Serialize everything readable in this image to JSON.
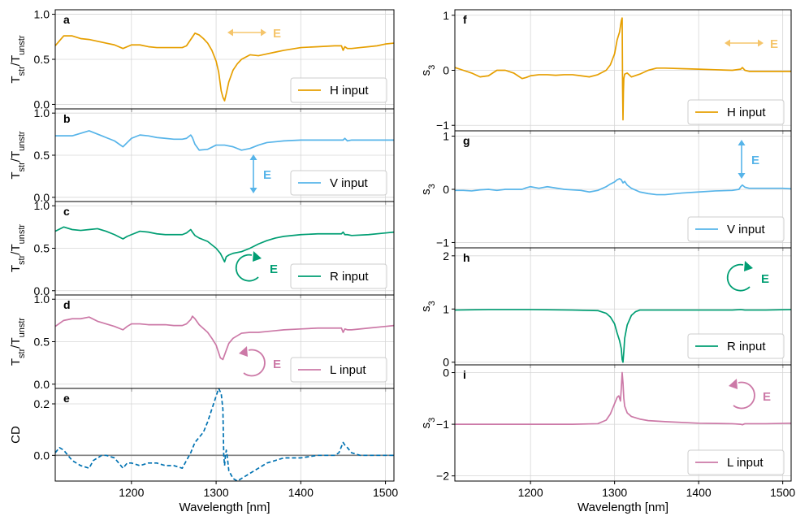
{
  "colors": {
    "H": "#E69F00",
    "V": "#56B4E9",
    "R": "#009E73",
    "L": "#CC79A7",
    "CD": "#0072B2",
    "H_arrow": "#F5C56B",
    "grid": "#d6d6d6",
    "zero": "#808080"
  },
  "icons": {
    "H": "double-arrow-horizontal-icon",
    "V": "double-arrow-vertical-icon",
    "R": "circular-arrow-clockwise-icon",
    "L": "circular-arrow-counterclockwise-icon"
  },
  "chart_data": [
    {
      "id": "a",
      "panel_label": "a",
      "type": "line",
      "ylabel": "T_str/T_unstr",
      "ylabel_main": "T",
      "ylabel_sub1": "str",
      "ylabel_mid": "/T",
      "ylabel_sub2": "unstr",
      "ylim": [
        -0.05,
        1.05
      ],
      "yticks": [
        0.0,
        0.5,
        1.0
      ],
      "ytick_labels": [
        "0.0",
        "0.5",
        "1.0"
      ],
      "xlim": [
        1110,
        1510
      ],
      "legend": "H input",
      "legend_placement": "bottom-right",
      "polarization_label": "E",
      "polarization": "H",
      "series_color": "H",
      "series": {
        "name": "H input",
        "x": [
          1110,
          1120,
          1130,
          1140,
          1150,
          1160,
          1170,
          1180,
          1190,
          1200,
          1210,
          1220,
          1230,
          1240,
          1250,
          1260,
          1265,
          1270,
          1275,
          1280,
          1285,
          1290,
          1295,
          1300,
          1303,
          1306,
          1308,
          1310,
          1312,
          1315,
          1320,
          1325,
          1330,
          1340,
          1350,
          1360,
          1370,
          1380,
          1400,
          1420,
          1440,
          1448,
          1450,
          1452,
          1455,
          1460,
          1470,
          1480,
          1490,
          1500,
          1510
        ],
        "y": [
          0.65,
          0.76,
          0.76,
          0.73,
          0.72,
          0.7,
          0.68,
          0.66,
          0.62,
          0.66,
          0.66,
          0.64,
          0.63,
          0.63,
          0.63,
          0.63,
          0.65,
          0.72,
          0.79,
          0.77,
          0.73,
          0.68,
          0.6,
          0.48,
          0.36,
          0.15,
          0.08,
          0.04,
          0.12,
          0.25,
          0.38,
          0.45,
          0.5,
          0.55,
          0.54,
          0.56,
          0.58,
          0.6,
          0.63,
          0.64,
          0.65,
          0.65,
          0.6,
          0.64,
          0.62,
          0.62,
          0.63,
          0.64,
          0.65,
          0.67,
          0.68
        ]
      }
    },
    {
      "id": "b",
      "panel_label": "b",
      "type": "line",
      "ylabel": "T_str/T_unstr",
      "ylabel_main": "T",
      "ylabel_sub1": "str",
      "ylabel_mid": "/T",
      "ylabel_sub2": "unstr",
      "ylim": [
        -0.05,
        1.05
      ],
      "yticks": [
        0.0,
        0.5,
        1.0
      ],
      "ytick_labels": [
        "0.0",
        "0.5",
        "1.0"
      ],
      "xlim": [
        1110,
        1510
      ],
      "legend": "V input",
      "legend_placement": "bottom-right",
      "polarization_label": "E",
      "polarization": "V",
      "series_color": "V",
      "series": {
        "name": "V input",
        "x": [
          1110,
          1120,
          1130,
          1140,
          1150,
          1160,
          1170,
          1180,
          1190,
          1195,
          1200,
          1210,
          1220,
          1230,
          1240,
          1250,
          1260,
          1265,
          1270,
          1272,
          1275,
          1280,
          1290,
          1300,
          1310,
          1320,
          1330,
          1340,
          1350,
          1360,
          1370,
          1380,
          1400,
          1420,
          1440,
          1450,
          1452,
          1455,
          1460,
          1480,
          1500,
          1510
        ],
        "y": [
          0.73,
          0.73,
          0.73,
          0.76,
          0.79,
          0.75,
          0.71,
          0.67,
          0.6,
          0.65,
          0.7,
          0.74,
          0.73,
          0.71,
          0.7,
          0.69,
          0.69,
          0.7,
          0.74,
          0.71,
          0.63,
          0.56,
          0.57,
          0.62,
          0.62,
          0.6,
          0.56,
          0.58,
          0.62,
          0.65,
          0.66,
          0.67,
          0.68,
          0.68,
          0.68,
          0.68,
          0.7,
          0.67,
          0.68,
          0.68,
          0.68,
          0.68
        ]
      }
    },
    {
      "id": "c",
      "panel_label": "c",
      "type": "line",
      "ylabel": "T_str/T_unstr",
      "ylabel_main": "T",
      "ylabel_sub1": "str",
      "ylabel_mid": "/T",
      "ylabel_sub2": "unstr",
      "ylim": [
        -0.05,
        1.05
      ],
      "yticks": [
        0.0,
        0.5,
        1.0
      ],
      "ytick_labels": [
        "0.0",
        "0.5",
        "1.0"
      ],
      "xlim": [
        1110,
        1510
      ],
      "legend": "R input",
      "legend_placement": "bottom-right",
      "polarization_label": "E",
      "polarization": "R",
      "series_color": "R",
      "series": {
        "name": "R input",
        "x": [
          1110,
          1120,
          1130,
          1140,
          1150,
          1160,
          1170,
          1180,
          1190,
          1195,
          1200,
          1210,
          1220,
          1230,
          1240,
          1250,
          1260,
          1265,
          1270,
          1272,
          1275,
          1280,
          1290,
          1300,
          1305,
          1308,
          1310,
          1312,
          1315,
          1320,
          1330,
          1340,
          1350,
          1360,
          1370,
          1380,
          1400,
          1420,
          1440,
          1448,
          1450,
          1452,
          1455,
          1460,
          1480,
          1500,
          1510
        ],
        "y": [
          0.7,
          0.75,
          0.72,
          0.71,
          0.72,
          0.73,
          0.7,
          0.66,
          0.61,
          0.64,
          0.66,
          0.7,
          0.69,
          0.67,
          0.66,
          0.66,
          0.66,
          0.68,
          0.72,
          0.69,
          0.65,
          0.62,
          0.58,
          0.5,
          0.44,
          0.38,
          0.34,
          0.4,
          0.42,
          0.44,
          0.46,
          0.5,
          0.55,
          0.59,
          0.62,
          0.64,
          0.66,
          0.67,
          0.67,
          0.67,
          0.69,
          0.66,
          0.66,
          0.65,
          0.66,
          0.68,
          0.69
        ]
      }
    },
    {
      "id": "d",
      "panel_label": "d",
      "type": "line",
      "ylabel": "T_str/T_unstr",
      "ylabel_main": "T",
      "ylabel_sub1": "str",
      "ylabel_mid": "/T",
      "ylabel_sub2": "unstr",
      "ylim": [
        -0.05,
        1.05
      ],
      "yticks": [
        0.0,
        0.5,
        1.0
      ],
      "ytick_labels": [
        "0.0",
        "0.5",
        "1.0"
      ],
      "xlim": [
        1110,
        1510
      ],
      "legend": "L input",
      "legend_placement": "bottom-right",
      "polarization_label": "E",
      "polarization": "L",
      "series_color": "L",
      "series": {
        "name": "L input",
        "x": [
          1110,
          1120,
          1130,
          1140,
          1150,
          1160,
          1170,
          1180,
          1190,
          1195,
          1200,
          1210,
          1220,
          1230,
          1240,
          1250,
          1260,
          1265,
          1270,
          1272,
          1275,
          1280,
          1290,
          1295,
          1300,
          1305,
          1308,
          1312,
          1315,
          1320,
          1330,
          1340,
          1350,
          1360,
          1370,
          1380,
          1400,
          1420,
          1440,
          1448,
          1450,
          1452,
          1455,
          1460,
          1480,
          1500,
          1510
        ],
        "y": [
          0.68,
          0.75,
          0.77,
          0.77,
          0.79,
          0.74,
          0.71,
          0.68,
          0.64,
          0.68,
          0.71,
          0.71,
          0.7,
          0.7,
          0.7,
          0.69,
          0.69,
          0.71,
          0.76,
          0.8,
          0.77,
          0.7,
          0.61,
          0.54,
          0.46,
          0.31,
          0.29,
          0.4,
          0.48,
          0.54,
          0.6,
          0.61,
          0.61,
          0.62,
          0.63,
          0.64,
          0.65,
          0.66,
          0.66,
          0.66,
          0.61,
          0.65,
          0.64,
          0.64,
          0.66,
          0.68,
          0.69
        ]
      }
    },
    {
      "id": "e",
      "panel_label": "e",
      "type": "line",
      "ylabel": "CD",
      "ylim": [
        -0.1,
        0.26
      ],
      "yticks": [
        0.0,
        0.2
      ],
      "ytick_labels": [
        "0.0",
        "0.2"
      ],
      "xlim": [
        1110,
        1510
      ],
      "xticks": [
        1200,
        1300,
        1400,
        1500
      ],
      "xtick_labels": [
        "1200",
        "1300",
        "1400",
        "1500"
      ],
      "xlabel": "Wavelength [nm]",
      "series_color": "CD",
      "dashed": true,
      "series": {
        "name": "CD",
        "x": [
          1110,
          1115,
          1120,
          1130,
          1140,
          1150,
          1155,
          1160,
          1165,
          1170,
          1180,
          1190,
          1195,
          1200,
          1210,
          1220,
          1230,
          1240,
          1250,
          1260,
          1265,
          1270,
          1275,
          1280,
          1285,
          1290,
          1295,
          1300,
          1303,
          1306,
          1308,
          1309,
          1310,
          1311,
          1312,
          1313,
          1315,
          1320,
          1325,
          1330,
          1340,
          1350,
          1360,
          1370,
          1380,
          1400,
          1420,
          1440,
          1445,
          1450,
          1452,
          1455,
          1460,
          1470,
          1480,
          1500,
          1510
        ],
        "y": [
          0.01,
          0.03,
          0.02,
          -0.02,
          -0.04,
          -0.05,
          -0.02,
          -0.01,
          0.0,
          0.0,
          -0.01,
          -0.05,
          -0.03,
          -0.03,
          -0.04,
          -0.03,
          -0.03,
          -0.04,
          -0.04,
          -0.05,
          -0.02,
          0.01,
          0.05,
          0.07,
          0.09,
          0.13,
          0.18,
          0.23,
          0.26,
          0.24,
          0.18,
          0.0,
          -0.04,
          0.0,
          0.02,
          0.0,
          -0.06,
          -0.09,
          -0.1,
          -0.09,
          -0.07,
          -0.05,
          -0.03,
          -0.02,
          -0.01,
          -0.01,
          0.0,
          0.0,
          0.01,
          0.05,
          0.04,
          0.03,
          0.01,
          0.0,
          0.0,
          0.0,
          0.0
        ]
      }
    },
    {
      "id": "f",
      "panel_label": "f",
      "type": "line",
      "ylabel": "s_3",
      "ylabel_main": "s",
      "ylabel_sub1": "3",
      "ylim": [
        -1.1,
        1.1
      ],
      "yticks": [
        -1,
        0,
        1
      ],
      "ytick_labels": [
        "−1",
        "0",
        "1"
      ],
      "xlim": [
        1110,
        1510
      ],
      "legend": "H input",
      "legend_placement": "bottom-right",
      "polarization_label": "E",
      "polarization": "H",
      "series_color": "H",
      "series": {
        "name": "H input",
        "x": [
          1110,
          1120,
          1130,
          1140,
          1150,
          1160,
          1170,
          1180,
          1190,
          1195,
          1200,
          1210,
          1220,
          1230,
          1240,
          1250,
          1260,
          1270,
          1280,
          1290,
          1295,
          1300,
          1303,
          1306,
          1308,
          1309,
          1309.5,
          1310,
          1310.5,
          1311,
          1312,
          1315,
          1320,
          1330,
          1340,
          1350,
          1360,
          1380,
          1400,
          1420,
          1440,
          1450,
          1452,
          1455,
          1460,
          1480,
          1500,
          1510
        ],
        "y": [
          0.05,
          0.0,
          -0.05,
          -0.12,
          -0.1,
          0.0,
          0.0,
          -0.05,
          -0.15,
          -0.13,
          -0.1,
          -0.08,
          -0.08,
          -0.09,
          -0.08,
          -0.08,
          -0.1,
          -0.12,
          -0.08,
          0.0,
          0.1,
          0.3,
          0.55,
          0.7,
          0.9,
          0.95,
          -0.3,
          -0.9,
          -0.4,
          -0.15,
          -0.07,
          -0.05,
          -0.12,
          -0.07,
          0.0,
          0.04,
          0.04,
          0.03,
          0.02,
          0.01,
          0.0,
          0.02,
          0.05,
          0.0,
          -0.02,
          -0.02,
          -0.02,
          -0.02
        ]
      }
    },
    {
      "id": "g",
      "panel_label": "g",
      "type": "line",
      "ylabel": "s_3",
      "ylabel_main": "s",
      "ylabel_sub1": "3",
      "ylim": [
        -1.1,
        1.1
      ],
      "yticks": [
        -1,
        0,
        1
      ],
      "ytick_labels": [
        "−1",
        "0",
        "1"
      ],
      "xlim": [
        1110,
        1510
      ],
      "legend": "V input",
      "legend_placement": "bottom-right",
      "polarization_label": "E",
      "polarization": "V",
      "series_color": "V",
      "series": {
        "name": "V input",
        "x": [
          1110,
          1120,
          1130,
          1140,
          1150,
          1160,
          1170,
          1180,
          1190,
          1195,
          1200,
          1210,
          1220,
          1240,
          1260,
          1270,
          1280,
          1290,
          1295,
          1300,
          1303,
          1306,
          1308,
          1310,
          1312,
          1315,
          1320,
          1330,
          1340,
          1350,
          1360,
          1380,
          1400,
          1420,
          1440,
          1448,
          1450,
          1452,
          1455,
          1460,
          1480,
          1500,
          1510
        ],
        "y": [
          -0.02,
          -0.02,
          -0.03,
          -0.01,
          0.0,
          -0.02,
          0.0,
          0.0,
          0.0,
          0.03,
          0.05,
          0.02,
          0.05,
          0.0,
          -0.02,
          -0.05,
          -0.02,
          0.05,
          0.1,
          0.14,
          0.18,
          0.2,
          0.18,
          0.12,
          0.15,
          0.08,
          0.02,
          -0.05,
          -0.08,
          -0.1,
          -0.1,
          -0.07,
          -0.05,
          -0.03,
          -0.02,
          0.0,
          0.05,
          0.08,
          0.04,
          0.02,
          0.02,
          0.02,
          0.01
        ]
      }
    },
    {
      "id": "h",
      "panel_label": "h",
      "type": "line",
      "ylabel": "s_3",
      "ylabel_main": "s",
      "ylabel_sub1": "3",
      "ylim": [
        -0.05,
        2.15
      ],
      "yticks": [
        0,
        1,
        2
      ],
      "ytick_labels": [
        "0",
        "1",
        "2"
      ],
      "xlim": [
        1110,
        1510
      ],
      "legend": "R input",
      "legend_placement": "bottom-right",
      "polarization_label": "E",
      "polarization": "R",
      "series_color": "R",
      "series": {
        "name": "R input",
        "x": [
          1110,
          1150,
          1200,
          1250,
          1280,
          1290,
          1295,
          1300,
          1303,
          1306,
          1308,
          1309,
          1310,
          1311,
          1312,
          1315,
          1320,
          1325,
          1330,
          1340,
          1360,
          1400,
          1440,
          1450,
          1455,
          1480,
          1510
        ],
        "y": [
          0.98,
          0.99,
          0.99,
          0.98,
          0.97,
          0.92,
          0.85,
          0.72,
          0.55,
          0.4,
          0.25,
          0.05,
          0.0,
          0.2,
          0.45,
          0.7,
          0.88,
          0.95,
          0.98,
          0.98,
          0.98,
          0.98,
          0.98,
          0.99,
          0.98,
          0.98,
          0.99
        ]
      }
    },
    {
      "id": "i",
      "panel_label": "i",
      "type": "line",
      "ylabel": "s_3",
      "ylabel_main": "s",
      "ylabel_sub1": "3",
      "ylim": [
        -2.1,
        0.15
      ],
      "yticks": [
        -2,
        -1,
        0
      ],
      "ytick_labels": [
        "−2",
        "−1",
        "0"
      ],
      "xlim": [
        1110,
        1510
      ],
      "xticks": [
        1200,
        1300,
        1400,
        1500
      ],
      "xtick_labels": [
        "1200",
        "1300",
        "1400",
        "1500"
      ],
      "xlabel": "Wavelength [nm]",
      "legend": "L input",
      "legend_placement": "bottom-right",
      "polarization_label": "E",
      "polarization": "L",
      "series_color": "L",
      "series": {
        "name": "L input",
        "x": [
          1110,
          1150,
          1200,
          1250,
          1280,
          1290,
          1295,
          1300,
          1303,
          1305,
          1307,
          1308,
          1309,
          1310,
          1311,
          1312,
          1315,
          1320,
          1330,
          1340,
          1360,
          1400,
          1440,
          1450,
          1452,
          1455,
          1480,
          1510
        ],
        "y": [
          -1.0,
          -1.0,
          -1.0,
          -1.0,
          -0.99,
          -0.92,
          -0.8,
          -0.6,
          -0.48,
          -0.45,
          -0.55,
          -0.3,
          0.0,
          -0.2,
          -0.5,
          -0.65,
          -0.78,
          -0.85,
          -0.9,
          -0.93,
          -0.95,
          -0.98,
          -0.99,
          -1.0,
          -1.01,
          -0.99,
          -0.99,
          -0.98
        ]
      }
    }
  ]
}
